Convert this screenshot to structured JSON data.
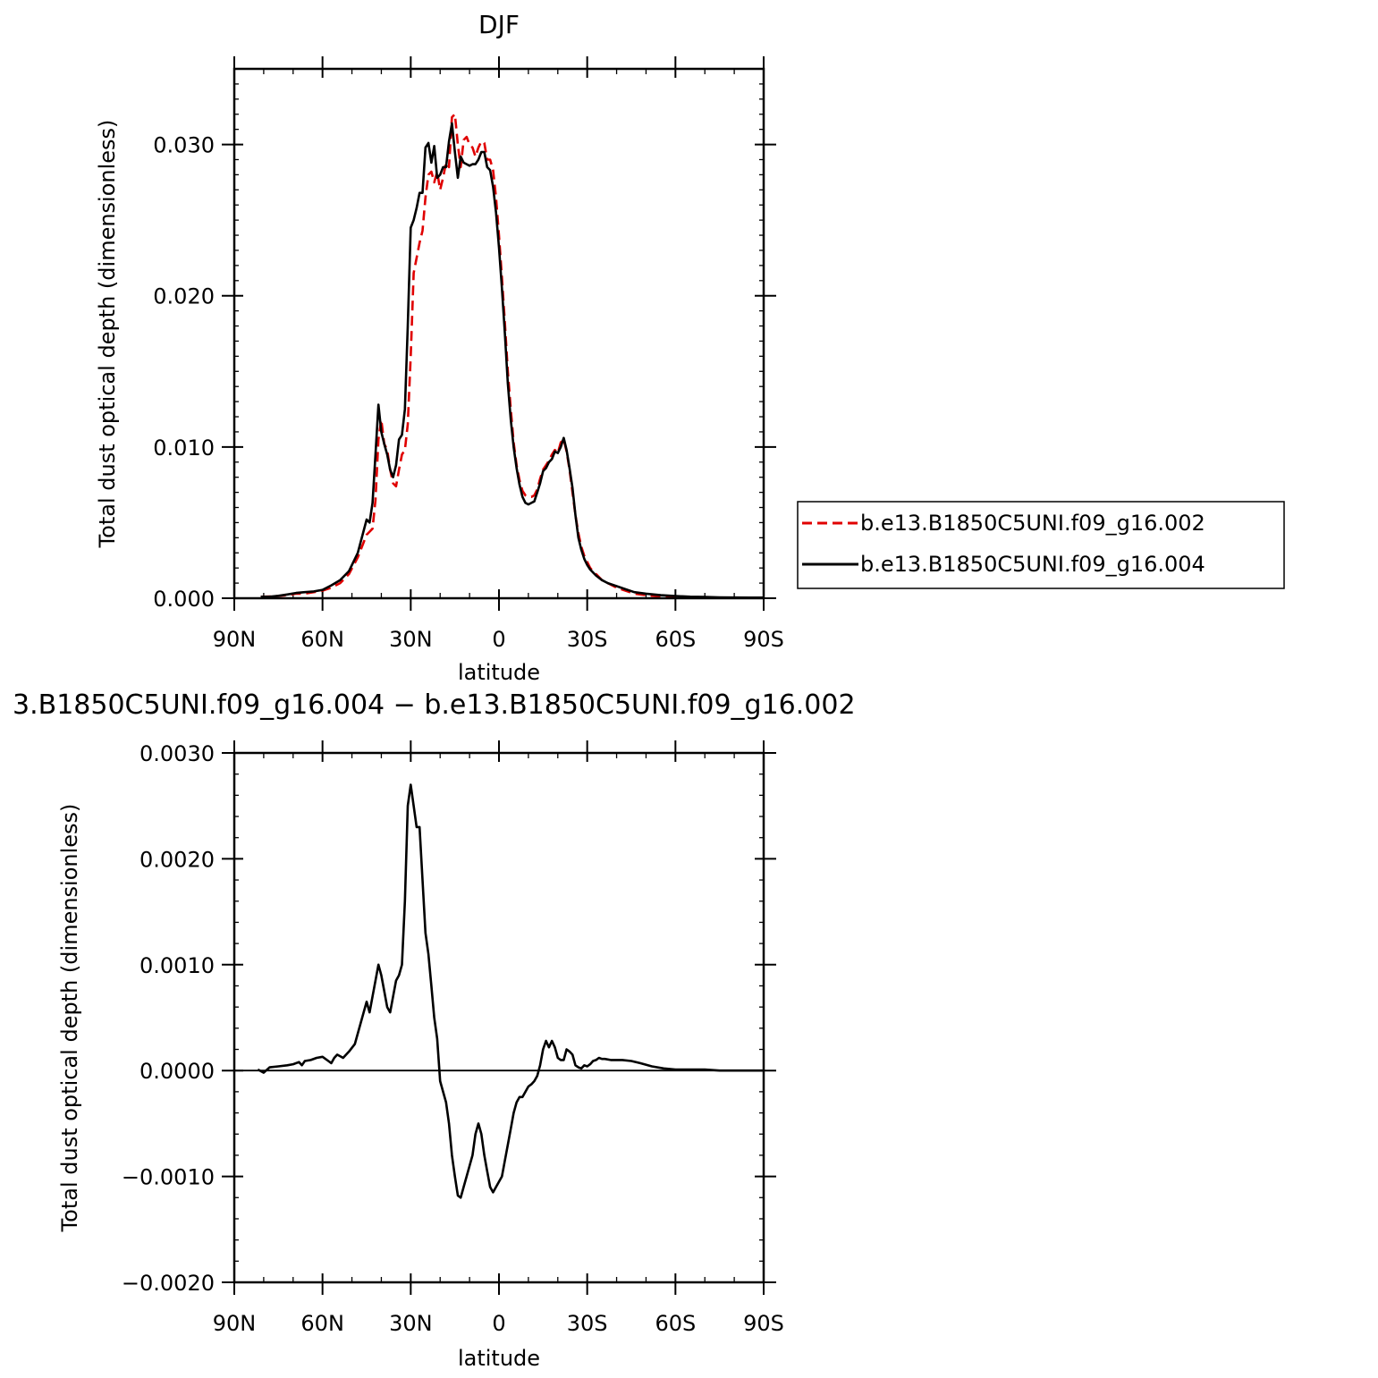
{
  "chart_data": [
    {
      "type": "line",
      "title": "DJF",
      "xlabel": "latitude",
      "ylabel": "Total dust optical depth (dimensionless)",
      "xlim": [
        90,
        -90
      ],
      "ylim": [
        0,
        0.035
      ],
      "x_ticks": [
        {
          "value": 90,
          "label": "90N"
        },
        {
          "value": 60,
          "label": "60N"
        },
        {
          "value": 30,
          "label": "30N"
        },
        {
          "value": 0,
          "label": "0"
        },
        {
          "value": -30,
          "label": "30S"
        },
        {
          "value": -60,
          "label": "60S"
        },
        {
          "value": -90,
          "label": "90S"
        }
      ],
      "y_ticks": [
        {
          "value": 0,
          "label": "0.000"
        },
        {
          "value": 0.01,
          "label": "0.010"
        },
        {
          "value": 0.02,
          "label": "0.020"
        },
        {
          "value": 0.03,
          "label": "0.030"
        }
      ],
      "grid": false,
      "legend": "right",
      "legend_labels": [
        "b.e13.B1850C5UNI.f09_g16.002",
        "b.e13.B1850C5UNI.f09_g16.004"
      ],
      "series": [
        {
          "name": "b.e13.B1850C5UNI.f09_g16.002",
          "color": "#e00000",
          "dash": "dashed",
          "x": [
            81,
            78,
            75,
            72,
            69,
            66,
            63,
            60,
            57,
            54,
            51,
            48,
            45,
            44,
            43,
            42,
            41,
            40,
            39,
            38,
            37,
            36,
            35,
            34,
            33,
            32,
            31,
            30,
            29,
            28,
            27,
            26,
            25,
            24,
            23,
            22,
            21,
            20,
            19,
            18,
            17,
            16,
            15,
            14,
            13,
            12,
            11,
            10,
            9,
            8,
            7,
            6,
            5,
            4,
            3,
            2,
            1,
            0,
            -1,
            -2,
            -3,
            -4,
            -5,
            -6,
            -7,
            -8,
            -9,
            -10,
            -11,
            -12,
            -13,
            -14,
            -15,
            -16,
            -17,
            -18,
            -19,
            -20,
            -21,
            -22,
            -23,
            -24,
            -25,
            -26,
            -27,
            -28,
            -29,
            -30,
            -31,
            -32,
            -33,
            -35,
            -37,
            -40,
            -43,
            -46,
            -50,
            -55,
            -60,
            -65,
            -70,
            -75,
            -80,
            -85,
            -90
          ],
          "y": [
            0.0001,
            0.00012,
            0.00015,
            0.0002,
            0.0003,
            0.0003,
            0.0004,
            0.0005,
            0.0007,
            0.001,
            0.0016,
            0.0027,
            0.0042,
            0.0044,
            0.0046,
            0.0065,
            0.0105,
            0.0118,
            0.0102,
            0.0098,
            0.0085,
            0.0076,
            0.0074,
            0.0085,
            0.0095,
            0.0098,
            0.0115,
            0.016,
            0.0215,
            0.0225,
            0.0235,
            0.0243,
            0.0265,
            0.028,
            0.0282,
            0.0275,
            0.0282,
            0.027,
            0.0278,
            0.0288,
            0.0285,
            0.0318,
            0.032,
            0.03,
            0.0285,
            0.0303,
            0.0305,
            0.03,
            0.0298,
            0.0292,
            0.0298,
            0.0302,
            0.0301,
            0.029,
            0.029,
            0.0283,
            0.0265,
            0.024,
            0.0212,
            0.0182,
            0.015,
            0.0125,
            0.0103,
            0.0088,
            0.0078,
            0.0071,
            0.0068,
            0.0067,
            0.0067,
            0.0068,
            0.0072,
            0.0079,
            0.0085,
            0.0088,
            0.0091,
            0.0095,
            0.0098,
            0.0096,
            0.0103,
            0.0105,
            0.0097,
            0.0085,
            0.007,
            0.0055,
            0.0043,
            0.0034,
            0.0028,
            0.0024,
            0.002,
            0.0018,
            0.0016,
            0.0012,
            0.001,
            0.0007,
            0.0005,
            0.0003,
            0.0002,
            0.0001,
            8e-05,
            6e-05,
            5e-05,
            4e-05,
            4e-05,
            3e-05,
            3e-05
          ]
        },
        {
          "name": "b.e13.B1850C5UNI.f09_g16.004",
          "color": "#000000",
          "dash": "solid",
          "x": [
            81,
            78,
            75,
            72,
            69,
            66,
            63,
            60,
            57,
            54,
            51,
            48,
            45,
            44,
            43,
            42,
            41,
            40,
            39,
            38,
            37,
            36,
            35,
            34,
            33,
            32,
            31,
            30,
            29,
            28,
            27,
            26,
            25,
            24,
            23,
            22,
            21,
            20,
            19,
            18,
            17,
            16,
            15,
            14,
            13,
            12,
            11,
            10,
            9,
            8,
            7,
            6,
            5,
            4,
            3,
            2,
            1,
            0,
            -1,
            -2,
            -3,
            -4,
            -5,
            -6,
            -7,
            -8,
            -9,
            -10,
            -11,
            -12,
            -13,
            -14,
            -15,
            -16,
            -17,
            -18,
            -19,
            -20,
            -21,
            -22,
            -23,
            -24,
            -25,
            -26,
            -27,
            -28,
            -29,
            -30,
            -31,
            -32,
            -33,
            -35,
            -37,
            -40,
            -43,
            -46,
            -50,
            -55,
            -60,
            -65,
            -70,
            -75,
            -80,
            -85,
            -90
          ],
          "y": [
            0.0001,
            0.0001,
            0.00016,
            0.00025,
            0.00035,
            0.0004,
            0.00045,
            0.00055,
            0.00085,
            0.0012,
            0.0018,
            0.003,
            0.0052,
            0.005,
            0.0063,
            0.0095,
            0.0128,
            0.011,
            0.0102,
            0.0095,
            0.0085,
            0.008,
            0.0088,
            0.0105,
            0.0108,
            0.0125,
            0.018,
            0.0245,
            0.025,
            0.0258,
            0.0268,
            0.0268,
            0.0298,
            0.0301,
            0.0288,
            0.0299,
            0.0278,
            0.028,
            0.0285,
            0.0285,
            0.0302,
            0.0314,
            0.0295,
            0.0278,
            0.0292,
            0.0288,
            0.0287,
            0.0286,
            0.0287,
            0.0287,
            0.029,
            0.0295,
            0.0295,
            0.0285,
            0.0283,
            0.0272,
            0.0255,
            0.0232,
            0.0205,
            0.0175,
            0.0142,
            0.0118,
            0.01,
            0.0086,
            0.0075,
            0.0067,
            0.0063,
            0.0062,
            0.0063,
            0.0064,
            0.007,
            0.0076,
            0.0084,
            0.0086,
            0.009,
            0.0092,
            0.0097,
            0.0096,
            0.01,
            0.0106,
            0.0098,
            0.0086,
            0.0073,
            0.0055,
            0.004,
            0.0032,
            0.0026,
            0.0022,
            0.0019,
            0.0017,
            0.0015,
            0.0012,
            0.001,
            0.0008,
            0.0006,
            0.0004,
            0.0003,
            0.0002,
            0.00015,
            0.0001,
            8e-05,
            6e-05,
            5e-05,
            4e-05,
            4e-05
          ]
        }
      ]
    },
    {
      "type": "line",
      "title": "3.B1850C5UNI.f09_g16.004 − b.e13.B1850C5UNI.f09_g16.002",
      "xlabel": "latitude",
      "ylabel": "Total dust optical depth (dimensionless)",
      "xlim": [
        90,
        -90
      ],
      "ylim": [
        -0.002,
        0.003
      ],
      "x_ticks": [
        {
          "value": 90,
          "label": "90N"
        },
        {
          "value": 60,
          "label": "60N"
        },
        {
          "value": 30,
          "label": "30N"
        },
        {
          "value": 0,
          "label": "0"
        },
        {
          "value": -30,
          "label": "30S"
        },
        {
          "value": -60,
          "label": "60S"
        },
        {
          "value": -90,
          "label": "90S"
        }
      ],
      "y_ticks": [
        {
          "value": -0.002,
          "label": "−0.0020"
        },
        {
          "value": -0.001,
          "label": "−0.0010"
        },
        {
          "value": 0,
          "label": "0.0000"
        },
        {
          "value": 0.001,
          "label": "0.0010"
        },
        {
          "value": 0.002,
          "label": "0.0020"
        },
        {
          "value": 0.003,
          "label": "0.0030"
        }
      ],
      "grid": false,
      "series": [
        {
          "color": "#000000",
          "dash": "solid",
          "x": [
            82,
            80,
            78,
            75,
            72,
            70,
            68,
            67,
            66,
            64,
            62,
            60,
            58,
            57,
            56,
            55,
            53,
            51,
            49,
            47,
            45,
            44,
            43,
            42,
            41,
            40,
            39,
            38,
            37,
            36,
            35,
            34,
            33,
            32,
            31,
            30,
            29,
            28,
            27,
            26,
            25,
            24,
            23,
            22,
            21,
            20,
            19,
            18,
            17,
            16,
            15,
            14,
            13,
            12,
            11,
            10,
            9,
            8,
            7,
            6,
            5,
            4,
            3,
            2,
            1,
            0,
            -1,
            -2,
            -3,
            -4,
            -5,
            -6,
            -7,
            -8,
            -9,
            -10,
            -11,
            -12,
            -13,
            -14,
            -15,
            -16,
            -17,
            -18,
            -19,
            -20,
            -21,
            -22,
            -23,
            -24,
            -25,
            -26,
            -27,
            -28,
            -29,
            -30,
            -31,
            -32,
            -33,
            -34,
            -35,
            -36,
            -38,
            -40,
            -42,
            -45,
            -48,
            -52,
            -56,
            -60,
            -65,
            -70,
            -75,
            -80,
            -85,
            -90
          ],
          "y": [
            1e-05,
            -2e-05,
            3e-05,
            4e-05,
            5e-05,
            6e-05,
            8e-05,
            5e-05,
            9e-05,
            0.0001,
            0.00012,
            0.00013,
            9e-05,
            7e-05,
            0.00012,
            0.00015,
            0.00012,
            0.00018,
            0.00025,
            0.00045,
            0.00065,
            0.00055,
            0.0007,
            0.00085,
            0.001,
            0.0009,
            0.00075,
            0.0006,
            0.00055,
            0.0007,
            0.00085,
            0.0009,
            0.001,
            0.0016,
            0.0025,
            0.0027,
            0.0025,
            0.0023,
            0.0023,
            0.0018,
            0.0013,
            0.0011,
            0.0008,
            0.0005,
            0.0003,
            -0.0001,
            -0.0002,
            -0.0003,
            -0.0005,
            -0.0008,
            -0.001,
            -0.00118,
            -0.0012,
            -0.0011,
            -0.001,
            -0.0009,
            -0.0008,
            -0.0006,
            -0.0005,
            -0.0006,
            -0.0008,
            -0.00095,
            -0.0011,
            -0.00115,
            -0.0011,
            -0.00105,
            -0.001,
            -0.00085,
            -0.0007,
            -0.00055,
            -0.0004,
            -0.0003,
            -0.00025,
            -0.00025,
            -0.0002,
            -0.00015,
            -0.00013,
            -0.0001,
            -5e-05,
            5e-05,
            0.0002,
            0.00028,
            0.00022,
            0.00028,
            0.00022,
            0.00012,
            0.0001,
            0.0001,
            0.0002,
            0.00018,
            0.00015,
            5e-05,
            3e-05,
            2e-05,
            5e-05,
            4e-05,
            6e-05,
            9e-05,
            0.0001,
            0.00012,
            0.00011,
            0.00011,
            0.0001,
            0.0001,
            0.0001,
            9e-05,
            7e-05,
            4e-05,
            2e-05,
            1e-05,
            1e-05,
            1e-05,
            0.0,
            0.0,
            0.0,
            0.0
          ]
        }
      ]
    }
  ]
}
